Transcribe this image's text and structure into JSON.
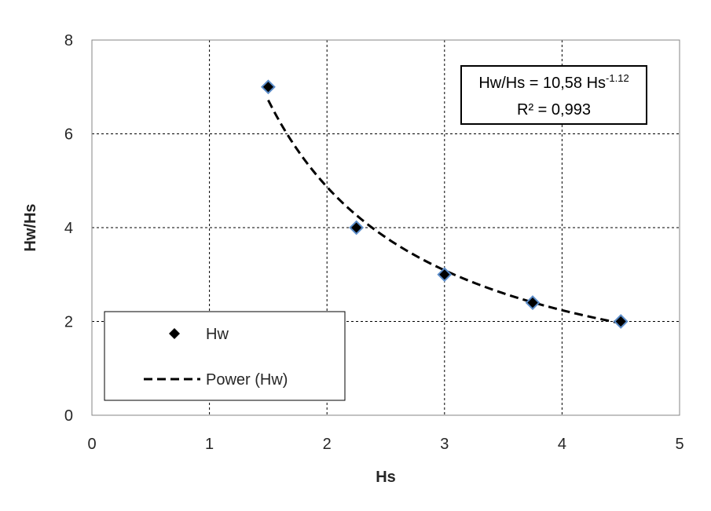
{
  "chart_data": {
    "type": "scatter",
    "title": "",
    "xlabel": "Hs",
    "ylabel": "Hw/Hs",
    "xlim": [
      0,
      5
    ],
    "ylim": [
      0,
      8
    ],
    "x_ticks": [
      "0",
      "1",
      "2",
      "3",
      "4",
      "5"
    ],
    "y_ticks": [
      "0",
      "2",
      "4",
      "6",
      "8"
    ],
    "grid": true,
    "grid_style": "dashed",
    "series": [
      {
        "name": "Hw",
        "type": "scatter",
        "marker": "diamond",
        "color": "#000000",
        "edge_color": "#5B8CC9",
        "points": [
          {
            "x": 1.5,
            "y": 7.0
          },
          {
            "x": 2.25,
            "y": 4.0
          },
          {
            "x": 3.0,
            "y": 3.0
          },
          {
            "x": 3.75,
            "y": 2.4
          },
          {
            "x": 4.5,
            "y": 2.0
          }
        ]
      },
      {
        "name": "Power (Hw)",
        "type": "line",
        "line_style": "dashed",
        "color": "#000000",
        "fit": "power",
        "coefficient": 10.58,
        "exponent": -1.12,
        "x_range": [
          1.5,
          4.5
        ]
      }
    ],
    "annotation": {
      "line1_text": "Hw/Hs = 10,58 Hs",
      "line1_superscript": "-1.12",
      "line2_text": "R² = 0,993"
    },
    "legend": {
      "position": "bottom-left",
      "entries": [
        "Hw",
        "Power (Hw)"
      ]
    }
  }
}
